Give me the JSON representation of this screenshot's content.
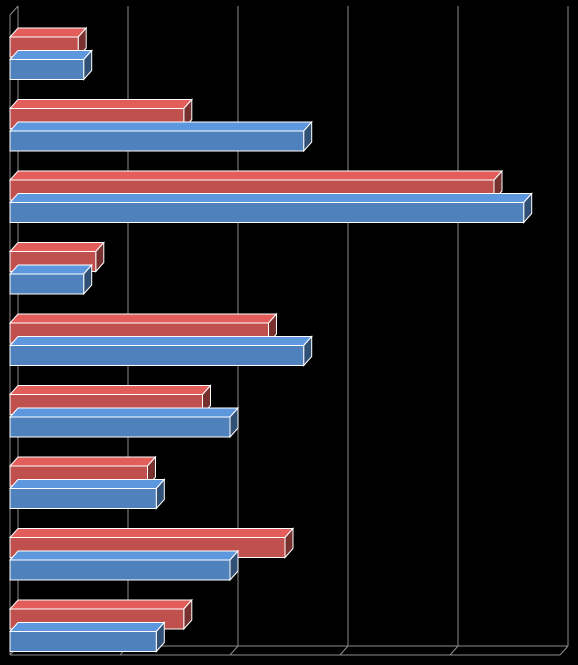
{
  "chart_data": {
    "type": "bar",
    "orientation": "horizontal",
    "style": "3d",
    "background": "#000000",
    "grid": true,
    "categories": [
      "",
      "",
      "",
      "",
      "",
      "",
      "",
      "",
      ""
    ],
    "xlim": [
      0,
      5
    ],
    "series": [
      {
        "color": "#C0504D",
        "values": [
          0.62,
          1.58,
          4.4,
          0.78,
          2.35,
          1.75,
          1.25,
          2.5,
          1.58
        ]
      },
      {
        "color": "#4F81BD",
        "values": [
          0.67,
          2.67,
          4.67,
          0.67,
          2.67,
          2.0,
          1.33,
          2.0,
          1.33
        ]
      }
    ]
  }
}
